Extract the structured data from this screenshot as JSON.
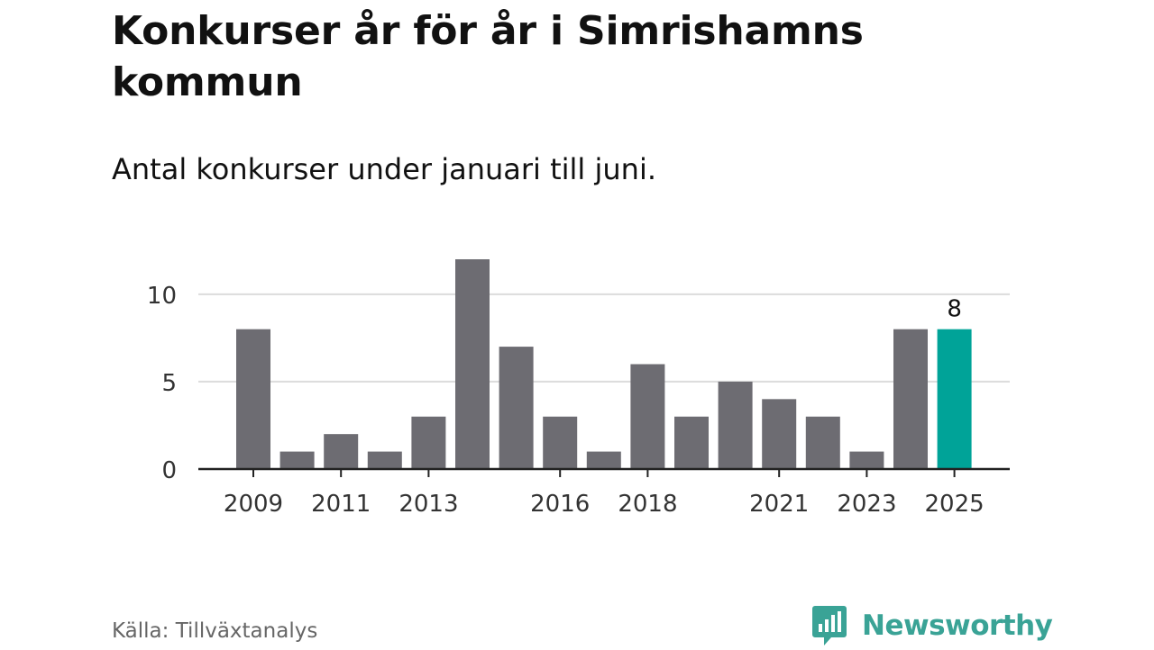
{
  "title": "Konkurser år för år i Simrishamns kommun",
  "subtitle": "Antal konkurser under januari till juni.",
  "source": "Källa: Tillväxtanalys",
  "brand": {
    "name": "Newsworthy",
    "icon": "newsworthy-logo-icon",
    "color": "#3aa396"
  },
  "colors": {
    "bar": "#6d6c72",
    "highlight": "#00a398",
    "grid": "#dcdcdc",
    "axis": "#222222"
  },
  "chart_data": {
    "type": "bar",
    "title": "Konkurser år för år i Simrishamns kommun",
    "subtitle": "Antal konkurser under januari till juni.",
    "xlabel": "",
    "ylabel": "",
    "categories": [
      "2009",
      "2010",
      "2011",
      "2012",
      "2013",
      "2014",
      "2015",
      "2016",
      "2017",
      "2018",
      "2019",
      "2020",
      "2021",
      "2022",
      "2023",
      "2024",
      "2025"
    ],
    "values": [
      8,
      1,
      2,
      1,
      3,
      12,
      7,
      3,
      1,
      6,
      3,
      5,
      4,
      3,
      1,
      8,
      8
    ],
    "x_tick_labels": [
      "2009",
      "2011",
      "2013",
      "2016",
      "2018",
      "2021",
      "2023",
      "2025"
    ],
    "y_ticks": [
      0,
      5,
      10
    ],
    "ylim": [
      0,
      12
    ],
    "grid": true,
    "highlight": {
      "category": "2025",
      "label": "8"
    }
  }
}
